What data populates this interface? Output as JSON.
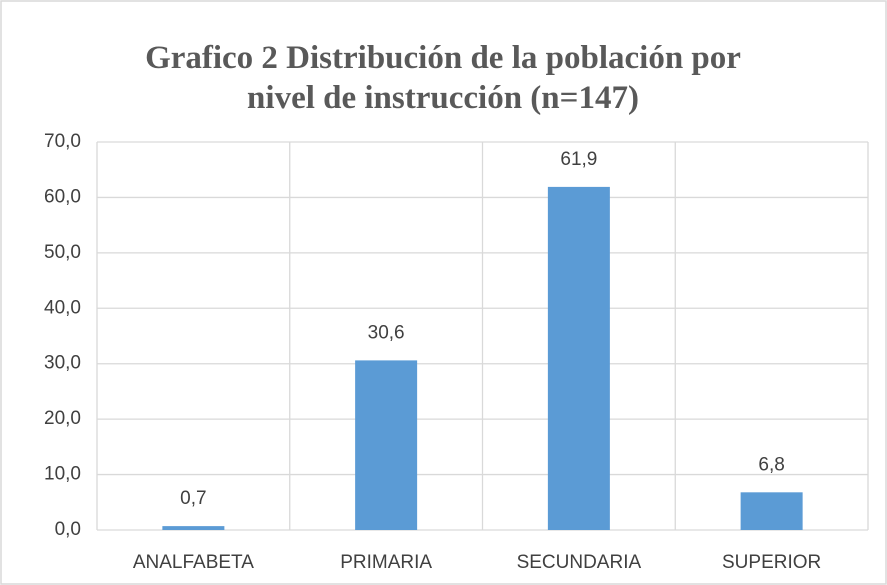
{
  "chart_data": {
    "type": "bar",
    "title": "Grafico 2 Distribución de la población por nivel de instrucción (n=147)",
    "categories": [
      "ANALFABETA",
      "PRIMARIA",
      "SECUNDARIA",
      "SUPERIOR"
    ],
    "values": [
      0.7,
      30.6,
      61.9,
      6.8
    ],
    "value_labels": [
      "0,7",
      "30,6",
      "61,9",
      "6,8"
    ],
    "color": "#5b9bd5",
    "ylim": [
      0,
      70
    ],
    "yticks": [
      {
        "value": 0,
        "label": "0,0"
      },
      {
        "value": 10,
        "label": "10,0"
      },
      {
        "value": 20,
        "label": "20,0"
      },
      {
        "value": 30,
        "label": "30,0"
      },
      {
        "value": 40,
        "label": "40,0"
      },
      {
        "value": 50,
        "label": "50,0"
      },
      {
        "value": 60,
        "label": "60,0"
      },
      {
        "value": 70,
        "label": "70,0"
      }
    ],
    "grid": true
  }
}
